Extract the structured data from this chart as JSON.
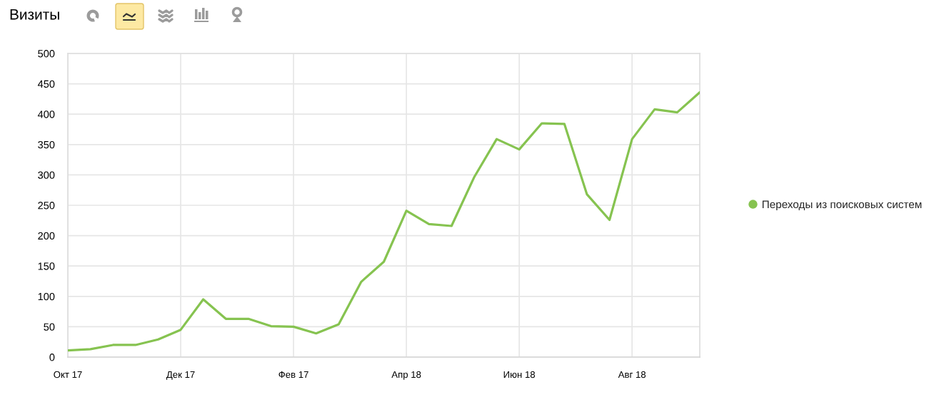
{
  "chart_data": {
    "type": "line",
    "title": "Визиты",
    "categories": [
      "Окт 17",
      null,
      null,
      null,
      null,
      "Дек 17",
      null,
      null,
      null,
      null,
      "Фев 17",
      null,
      null,
      null,
      null,
      "Апр 18",
      null,
      null,
      null,
      null,
      "Июн 18",
      null,
      null,
      null,
      null,
      "Авг 18",
      null,
      null,
      null
    ],
    "series": [
      {
        "name": "Переходы из поисковых систем",
        "color": "#86c350",
        "values": [
          11,
          13,
          20,
          20,
          29,
          45,
          95,
          63,
          63,
          51,
          50,
          39,
          54,
          124,
          157,
          241,
          219,
          216,
          296,
          359,
          342,
          385,
          384,
          268,
          226,
          359,
          408,
          403,
          436
        ]
      }
    ],
    "ylim": [
      0,
      500
    ],
    "yticks": [
      0,
      50,
      100,
      150,
      200,
      250,
      300,
      350,
      400,
      450,
      500
    ],
    "grid": true,
    "legend": "right",
    "line_style": "solid"
  }
}
